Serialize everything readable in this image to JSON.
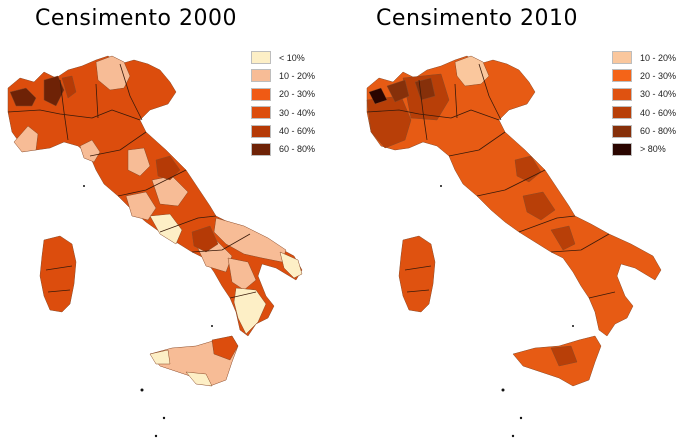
{
  "maps": [
    {
      "title": "Censimento 2000",
      "legend": [
        {
          "label": "< 10%",
          "color": "#fdefc6"
        },
        {
          "label": "10 - 20%",
          "color": "#f7bc96"
        },
        {
          "label": "20 - 30%",
          "color": "#f05a14"
        },
        {
          "label": "30 - 40%",
          "color": "#dc4d0d"
        },
        {
          "label": "40 - 60%",
          "color": "#b53a06"
        },
        {
          "label": "60 - 80%",
          "color": "#6e2206"
        }
      ]
    },
    {
      "title": "Censimento 2010",
      "legend": [
        {
          "label": "10 - 20%",
          "color": "#fac79d"
        },
        {
          "label": "20 - 30%",
          "color": "#f46418"
        },
        {
          "label": "30 - 40%",
          "color": "#df5210"
        },
        {
          "label": "40 - 60%",
          "color": "#b83f08"
        },
        {
          "label": "60 - 80%",
          "color": "#86300a"
        },
        {
          "label": "> 80%",
          "color": "#2a0500"
        }
      ]
    }
  ]
}
